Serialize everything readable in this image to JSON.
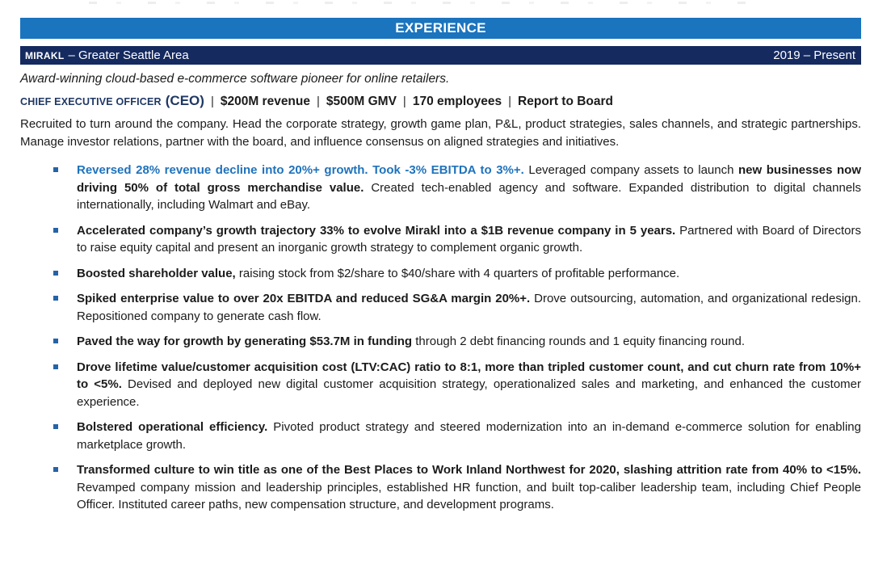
{
  "colors": {
    "header_blue": "#1b74be",
    "navy_bar": "#152a5f",
    "title_navy": "#1f3864",
    "accent_blue": "#1f72bc",
    "bullet_marker": "#2563a8",
    "body_text": "#1b1b1b"
  },
  "icons": {
    "bullet_marker": "small-square"
  },
  "section_header": {
    "label": "EXPERIENCE"
  },
  "company_bar": {
    "company": "MIRAKL",
    "location": "– Greater Seattle Area",
    "dates": "2019 – Present"
  },
  "tagline": "Award-winning cloud-based e-commerce software pioneer for online retailers.",
  "title_line": {
    "role_caps": "CHIEF EXECUTIVE OFFICER",
    "role_abbrev": "(CEO)",
    "separator": "|",
    "stats": [
      "$200M revenue",
      "$500M GMV",
      "170 employees",
      "Report to Board"
    ]
  },
  "summary": "Recruited to turn around the company. Head the corporate strategy, growth game plan, P&L, product strategies, sales channels, and strategic partnerships. Manage investor relations, partner with the board, and influence consensus on aligned strategies and initiatives.",
  "bullets": [
    {
      "segments": [
        {
          "style": "bold-blue",
          "text": "Reversed 28% revenue decline into 20%+ growth. Took -3% EBITDA to 3%+."
        },
        {
          "style": "regular",
          "text": " Leveraged company assets to launch "
        },
        {
          "style": "bold",
          "text": "new businesses now driving 50% of total gross merchandise value."
        },
        {
          "style": "regular",
          "text": " Created tech-enabled agency and software. Expanded distribution to digital channels internationally, including Walmart and eBay."
        }
      ]
    },
    {
      "segments": [
        {
          "style": "bold",
          "text": "Accelerated company’s growth trajectory 33% to evolve Mirakl into a $1B revenue company in 5 years."
        },
        {
          "style": "regular",
          "text": " Partnered with Board of Directors to raise equity capital and present an inorganic growth strategy to complement organic growth."
        }
      ]
    },
    {
      "segments": [
        {
          "style": "bold",
          "text": "Boosted shareholder value,"
        },
        {
          "style": "regular",
          "text": " raising stock from $2/share to $40/share with 4 quarters of profitable performance."
        }
      ]
    },
    {
      "segments": [
        {
          "style": "bold",
          "text": "Spiked enterprise value to over 20x EBITDA and reduced SG&A margin 20%+."
        },
        {
          "style": "regular",
          "text": " Drove outsourcing, automation, and organizational redesign. Repositioned company to generate cash flow."
        }
      ]
    },
    {
      "segments": [
        {
          "style": "bold",
          "text": "Paved the way for growth by generating $53.7M in funding"
        },
        {
          "style": "regular",
          "text": " through 2 debt financing rounds and 1 equity financing round."
        }
      ]
    },
    {
      "segments": [
        {
          "style": "bold",
          "text": "Drove lifetime value/customer acquisition cost (LTV:CAC) ratio to 8:1, more than tripled customer count, and cut churn rate from 10%+ to <5%."
        },
        {
          "style": "regular",
          "text": " Devised and deployed new digital customer acquisition strategy, operationalized sales and marketing, and enhanced the customer experience."
        }
      ]
    },
    {
      "segments": [
        {
          "style": "bold",
          "text": "Bolstered operational efficiency."
        },
        {
          "style": "regular",
          "text": " Pivoted product strategy and steered modernization into an in-demand e-commerce solution for enabling marketplace growth."
        }
      ]
    },
    {
      "segments": [
        {
          "style": "bold",
          "text": "Transformed culture to win title as one of the Best Places to Work Inland Northwest for 2020, slashing attrition rate from 40% to <15%."
        },
        {
          "style": "regular",
          "text": " Revamped company mission and leadership principles, established HR function, and built top-caliber leadership team, including Chief People Officer. Instituted career paths, new compensation structure, and development programs."
        }
      ]
    }
  ]
}
